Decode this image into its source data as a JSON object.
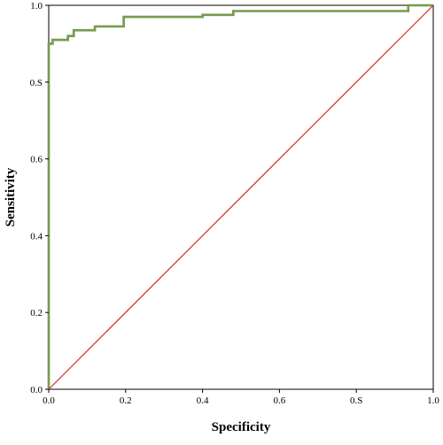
{
  "chart_data": {
    "type": "line",
    "title": "",
    "xlabel": "Specificity",
    "ylabel": "Sensitivity",
    "xlim": [
      0,
      1
    ],
    "ylim": [
      0,
      1
    ],
    "x_ticks": [
      {
        "value": 0.0,
        "label": "0.0"
      },
      {
        "value": 0.2,
        "label": "0.2"
      },
      {
        "value": 0.4,
        "label": "0.4"
      },
      {
        "value": 0.6,
        "label": "0.6"
      },
      {
        "value": 0.8,
        "label": "0.S"
      },
      {
        "value": 1.0,
        "label": "1.0"
      }
    ],
    "y_ticks": [
      {
        "value": 0.0,
        "label": "0.0"
      },
      {
        "value": 0.2,
        "label": "0.2"
      },
      {
        "value": 0.4,
        "label": "0.4"
      },
      {
        "value": 0.6,
        "label": "0.6"
      },
      {
        "value": 0.8,
        "label": "0.S"
      },
      {
        "value": 1.0,
        "label": "1.0"
      }
    ],
    "grid": false,
    "legend": "none",
    "series": [
      {
        "color": "#6fae2c",
        "step": true,
        "points": [
          [
            0.0,
            0.0
          ],
          [
            0.0,
            0.9
          ],
          [
            0.01,
            0.9
          ],
          [
            0.01,
            0.91
          ],
          [
            0.05,
            0.91
          ],
          [
            0.05,
            0.92
          ],
          [
            0.065,
            0.92
          ],
          [
            0.065,
            0.935
          ],
          [
            0.12,
            0.935
          ],
          [
            0.12,
            0.945
          ],
          [
            0.195,
            0.945
          ],
          [
            0.195,
            0.97
          ],
          [
            0.4,
            0.97
          ],
          [
            0.4,
            0.975
          ],
          [
            0.48,
            0.975
          ],
          [
            0.48,
            0.985
          ],
          [
            0.935,
            0.985
          ],
          [
            0.935,
            1.0
          ],
          [
            1.0,
            1.0
          ]
        ]
      },
      {
        "color": "#d62728",
        "step": false,
        "points": [
          [
            0.0,
            0.0
          ],
          [
            1.0,
            1.0
          ]
        ]
      }
    ]
  }
}
